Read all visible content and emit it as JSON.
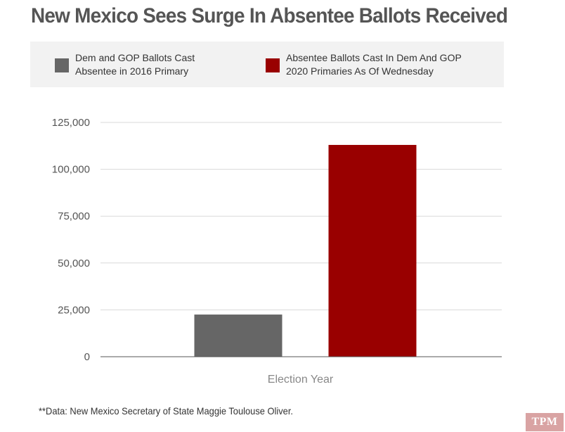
{
  "title": "New Mexico Sees Surge In Absentee Ballots Received",
  "legend": [
    {
      "label_line1": "Dem and GOP Ballots Cast",
      "label_line2": "Absentee in 2016 Primary",
      "color": "#666666"
    },
    {
      "label_line1": "Absentee Ballots Cast In Dem And GOP",
      "label_line2": "2020 Primaries As Of Wednesday",
      "color": "#990000"
    }
  ],
  "source": "**Data: New Mexico Secretary of State Maggie Toulouse Oliver.",
  "brand": "TPM",
  "chart_data": {
    "type": "bar",
    "title": "New Mexico Sees Surge In Absentee Ballots Received",
    "xlabel": "Election Year",
    "ylabel": "",
    "categories": [
      ""
    ],
    "series": [
      {
        "name": "Dem and GOP Ballots Cast Absentee in 2016 Primary",
        "values": [
          22500
        ],
        "color": "#666666"
      },
      {
        "name": "Absentee Ballots Cast In Dem And GOP 2020 Primaries As Of Wednesday",
        "values": [
          113000
        ],
        "color": "#990000"
      }
    ],
    "ylim": [
      0,
      125000
    ],
    "yticks": [
      0,
      25000,
      50000,
      75000,
      100000,
      125000
    ],
    "ytick_labels": [
      "0",
      "25,000",
      "50,000",
      "75,000",
      "100,000",
      "125,000"
    ],
    "grid": true,
    "legend_position": "top"
  }
}
